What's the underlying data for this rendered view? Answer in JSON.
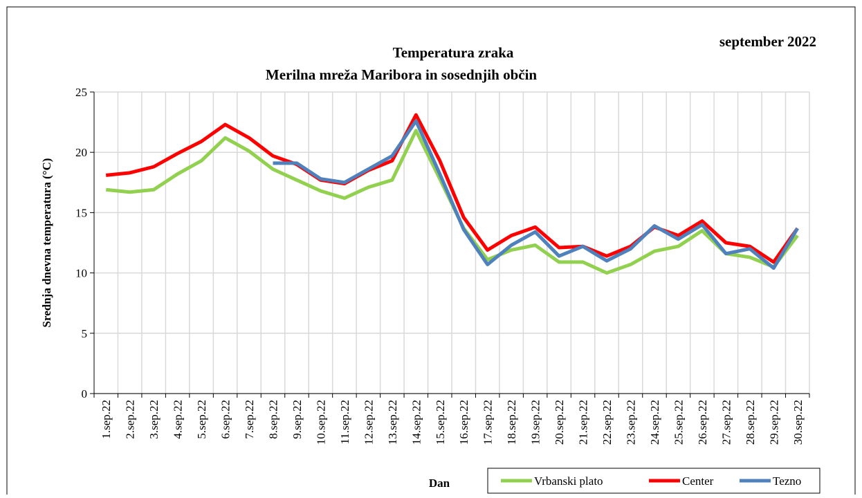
{
  "chart_data": {
    "type": "line",
    "title": [
      "Temperatura zraka",
      "Merilna mreža Maribora in sosednjih občin"
    ],
    "subtitle": "september 2022",
    "xlabel": "Dan",
    "ylabel": "Srednja dnevna temperatura (°C)",
    "categories": [
      "1.sep.22",
      "2.sep.22",
      "3.sep.22",
      "4.sep.22",
      "5.sep.22",
      "6.sep.22",
      "7.sep.22",
      "8.sep.22",
      "9.sep.22",
      "10.sep.22",
      "11.sep.22",
      "12.sep.22",
      "13.sep.22",
      "14.sep.22",
      "15.sep.22",
      "16.sep.22",
      "17.sep.22",
      "18.sep.22",
      "19.sep.22",
      "20.sep.22",
      "21.sep.22",
      "22.sep.22",
      "23.sep.22",
      "24.sep.22",
      "25.sep.22",
      "26.sep.22",
      "27.sep.22",
      "28.sep.22",
      "29.sep.22",
      "30.sep.22"
    ],
    "series": [
      {
        "name": "Vrbanski plato",
        "color": "#92d050",
        "values": [
          16.9,
          16.7,
          16.9,
          18.2,
          19.3,
          21.2,
          20.1,
          18.6,
          17.7,
          16.8,
          16.2,
          17.1,
          17.7,
          21.8,
          17.8,
          13.7,
          11.1,
          11.9,
          12.3,
          10.9,
          10.9,
          10.0,
          10.7,
          11.8,
          12.2,
          13.5,
          11.6,
          11.3,
          10.5,
          13.1
        ]
      },
      {
        "name": "Center",
        "color": "#ff0000",
        "values": [
          18.1,
          18.3,
          18.8,
          19.9,
          20.9,
          22.3,
          21.2,
          19.7,
          19.0,
          17.7,
          17.4,
          18.5,
          19.3,
          23.1,
          19.3,
          14.6,
          11.9,
          13.1,
          13.8,
          12.1,
          12.2,
          11.4,
          12.2,
          13.8,
          13.1,
          14.3,
          12.5,
          12.2,
          10.9,
          13.7
        ]
      },
      {
        "name": "Tezno",
        "color": "#4f81bd",
        "values": [
          null,
          null,
          null,
          null,
          null,
          null,
          null,
          19.1,
          19.1,
          17.8,
          17.5,
          18.6,
          19.7,
          22.6,
          18.2,
          13.6,
          10.7,
          12.3,
          13.4,
          11.4,
          12.2,
          11.0,
          12.0,
          13.9,
          12.8,
          14.0,
          11.6,
          12.0,
          10.4,
          13.7
        ]
      }
    ],
    "ylim": [
      0,
      25
    ],
    "yticks": [
      0,
      5,
      10,
      15,
      20,
      25
    ],
    "grid": true,
    "legend": "bottom-right"
  }
}
